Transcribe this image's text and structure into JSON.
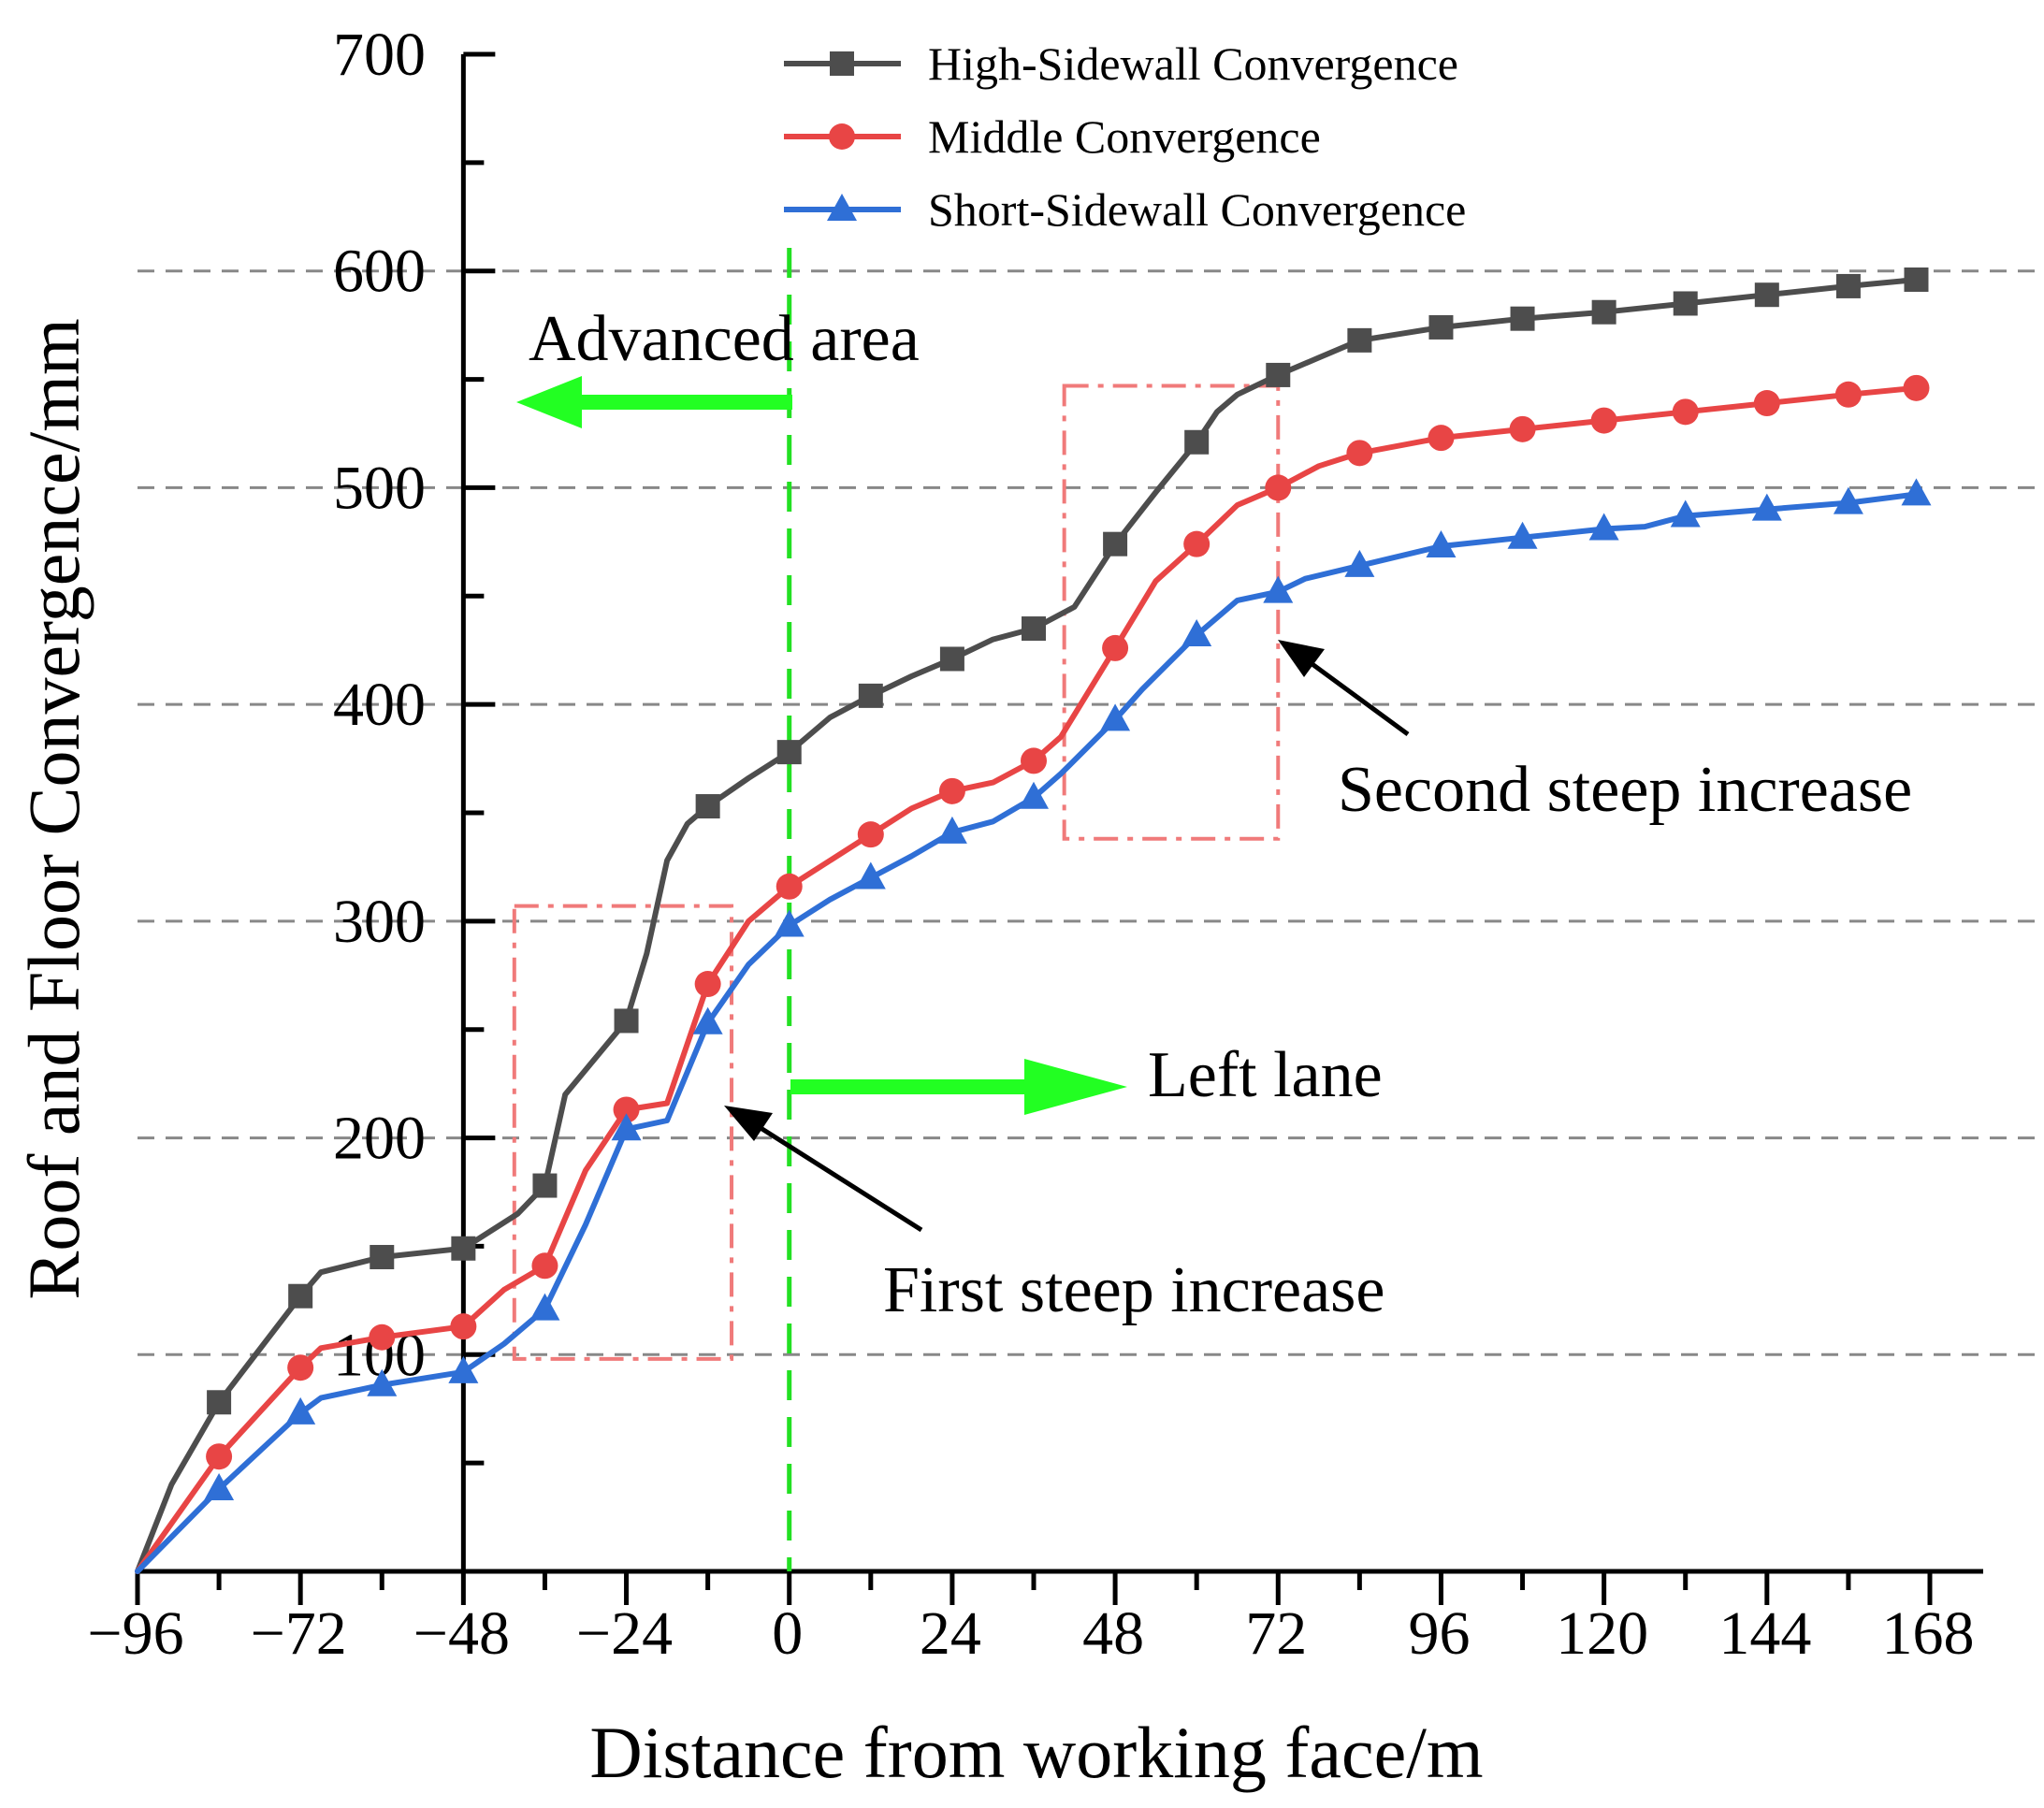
{
  "chart_data": {
    "type": "line",
    "title": "",
    "xlabel": "Distance from working face/m",
    "ylabel": "Roof and Floor Convergence/mm",
    "xlim": [
      -96,
      168
    ],
    "ylim": [
      0,
      700
    ],
    "x_ticks": [
      -96,
      -72,
      -48,
      -24,
      0,
      24,
      48,
      72,
      96,
      120,
      144,
      168
    ],
    "x_tick_labels": [
      "−96",
      "−72",
      "−48",
      "−24",
      "0",
      "24",
      "48",
      "72",
      "96",
      "120",
      "144",
      "168"
    ],
    "y_ticks": [
      100,
      200,
      300,
      400,
      500,
      600,
      700
    ],
    "y_tick_labels": [
      "100",
      "200",
      "300",
      "400",
      "500",
      "600",
      "700"
    ],
    "grid": "horizontal dashed at 100–600",
    "legend_position": "top-center",
    "series": [
      {
        "name": "High-Sidewall Convergence",
        "color": "#4d4d4d",
        "marker": "square",
        "line": [
          [
            -96,
            0
          ],
          [
            -91,
            40
          ],
          [
            -84,
            78
          ],
          [
            -72,
            127
          ],
          [
            -69,
            138
          ],
          [
            -60,
            145
          ],
          [
            -48,
            149
          ],
          [
            -40,
            165
          ],
          [
            -36,
            178
          ],
          [
            -33,
            220
          ],
          [
            -24,
            254
          ],
          [
            -21,
            285
          ],
          [
            -18,
            328
          ],
          [
            -15,
            345
          ],
          [
            -12,
            353
          ],
          [
            -6,
            366
          ],
          [
            0,
            378
          ],
          [
            6,
            394
          ],
          [
            12,
            404
          ],
          [
            18,
            413
          ],
          [
            24,
            421
          ],
          [
            30,
            430
          ],
          [
            36,
            435
          ],
          [
            42,
            445
          ],
          [
            48,
            474
          ],
          [
            54,
            498
          ],
          [
            60,
            521
          ],
          [
            63,
            535
          ],
          [
            66,
            543
          ],
          [
            72,
            552
          ],
          [
            78,
            560
          ],
          [
            84,
            568
          ],
          [
            90,
            571
          ],
          [
            96,
            574
          ],
          [
            108,
            578
          ],
          [
            120,
            581
          ],
          [
            132,
            585
          ],
          [
            144,
            589
          ],
          [
            156,
            593
          ],
          [
            166,
            596
          ]
        ],
        "markers": [
          [
            -84,
            78
          ],
          [
            -72,
            127
          ],
          [
            -60,
            145
          ],
          [
            -48,
            149
          ],
          [
            -36,
            178
          ],
          [
            -24,
            254
          ],
          [
            -12,
            353
          ],
          [
            0,
            378
          ],
          [
            12,
            404
          ],
          [
            24,
            421
          ],
          [
            36,
            435
          ],
          [
            48,
            474
          ],
          [
            60,
            521
          ],
          [
            72,
            552
          ],
          [
            84,
            568
          ],
          [
            96,
            574
          ],
          [
            108,
            578
          ],
          [
            120,
            581
          ],
          [
            132,
            585
          ],
          [
            144,
            589
          ],
          [
            156,
            593
          ],
          [
            166,
            596
          ]
        ]
      },
      {
        "name": "Middle Convergence",
        "color": "#e84545",
        "marker": "circle",
        "line": [
          [
            -96,
            0
          ],
          [
            -84,
            53
          ],
          [
            -72,
            94
          ],
          [
            -69,
            103
          ],
          [
            -60,
            108
          ],
          [
            -48,
            113
          ],
          [
            -42,
            130
          ],
          [
            -36,
            141
          ],
          [
            -30,
            185
          ],
          [
            -24,
            213
          ],
          [
            -18,
            216
          ],
          [
            -12,
            271
          ],
          [
            -6,
            300
          ],
          [
            0,
            316
          ],
          [
            6,
            328
          ],
          [
            12,
            340
          ],
          [
            18,
            352
          ],
          [
            24,
            360
          ],
          [
            30,
            364
          ],
          [
            36,
            374
          ],
          [
            40,
            385
          ],
          [
            48,
            426
          ],
          [
            54,
            457
          ],
          [
            60,
            474
          ],
          [
            66,
            492
          ],
          [
            72,
            500
          ],
          [
            78,
            510
          ],
          [
            84,
            516
          ],
          [
            96,
            523
          ],
          [
            108,
            527
          ],
          [
            120,
            531
          ],
          [
            132,
            535
          ],
          [
            144,
            539
          ],
          [
            156,
            543
          ],
          [
            166,
            546
          ]
        ],
        "markers": [
          [
            -84,
            53
          ],
          [
            -72,
            94
          ],
          [
            -60,
            108
          ],
          [
            -48,
            113
          ],
          [
            -36,
            141
          ],
          [
            -24,
            213
          ],
          [
            -12,
            271
          ],
          [
            0,
            316
          ],
          [
            12,
            340
          ],
          [
            24,
            360
          ],
          [
            36,
            374
          ],
          [
            48,
            426
          ],
          [
            60,
            474
          ],
          [
            72,
            500
          ],
          [
            84,
            516
          ],
          [
            96,
            523
          ],
          [
            108,
            527
          ],
          [
            120,
            531
          ],
          [
            132,
            535
          ],
          [
            144,
            539
          ],
          [
            156,
            543
          ],
          [
            166,
            546
          ]
        ]
      },
      {
        "name": "Short-Sidewall Convergence",
        "color": "#2f6fd6",
        "marker": "triangle",
        "line": [
          [
            -96,
            0
          ],
          [
            -84,
            38
          ],
          [
            -72,
            73
          ],
          [
            -69,
            80
          ],
          [
            -60,
            86
          ],
          [
            -48,
            92
          ],
          [
            -42,
            105
          ],
          [
            -36,
            121
          ],
          [
            -30,
            160
          ],
          [
            -24,
            204
          ],
          [
            -18,
            208
          ],
          [
            -12,
            253
          ],
          [
            -6,
            280
          ],
          [
            0,
            298
          ],
          [
            6,
            310
          ],
          [
            12,
            320
          ],
          [
            18,
            330
          ],
          [
            24,
            341
          ],
          [
            30,
            346
          ],
          [
            36,
            357
          ],
          [
            40,
            368
          ],
          [
            48,
            393
          ],
          [
            52,
            407
          ],
          [
            60,
            432
          ],
          [
            66,
            448
          ],
          [
            72,
            452
          ],
          [
            76,
            458
          ],
          [
            84,
            464
          ],
          [
            96,
            473
          ],
          [
            108,
            477
          ],
          [
            120,
            481
          ],
          [
            126,
            482
          ],
          [
            132,
            487
          ],
          [
            144,
            490
          ],
          [
            156,
            493
          ],
          [
            166,
            497
          ]
        ],
        "markers": [
          [
            -84,
            38
          ],
          [
            -72,
            73
          ],
          [
            -60,
            86
          ],
          [
            -48,
            92
          ],
          [
            -36,
            121
          ],
          [
            -24,
            204
          ],
          [
            -12,
            253
          ],
          [
            0,
            298
          ],
          [
            12,
            320
          ],
          [
            24,
            341
          ],
          [
            36,
            357
          ],
          [
            48,
            393
          ],
          [
            60,
            432
          ],
          [
            72,
            452
          ],
          [
            84,
            464
          ],
          [
            96,
            473
          ],
          [
            108,
            477
          ],
          [
            120,
            481
          ],
          [
            132,
            487
          ],
          [
            144,
            490
          ],
          [
            156,
            493
          ],
          [
            166,
            497
          ]
        ]
      }
    ],
    "annotations": {
      "advanced_area": "Advanced area",
      "left_lane": "Left lane",
      "first_steep": "First steep increase",
      "second_steep": "Second steep increase"
    },
    "regions": [
      {
        "name": "first steep increase",
        "x": [
          -40.5,
          -8.5
        ],
        "y": [
          98,
          307
        ]
      },
      {
        "name": "second steep increase",
        "x": [
          40.5,
          72
        ],
        "y": [
          338,
          547
        ]
      }
    ],
    "vertical_marker_x": 0
  }
}
